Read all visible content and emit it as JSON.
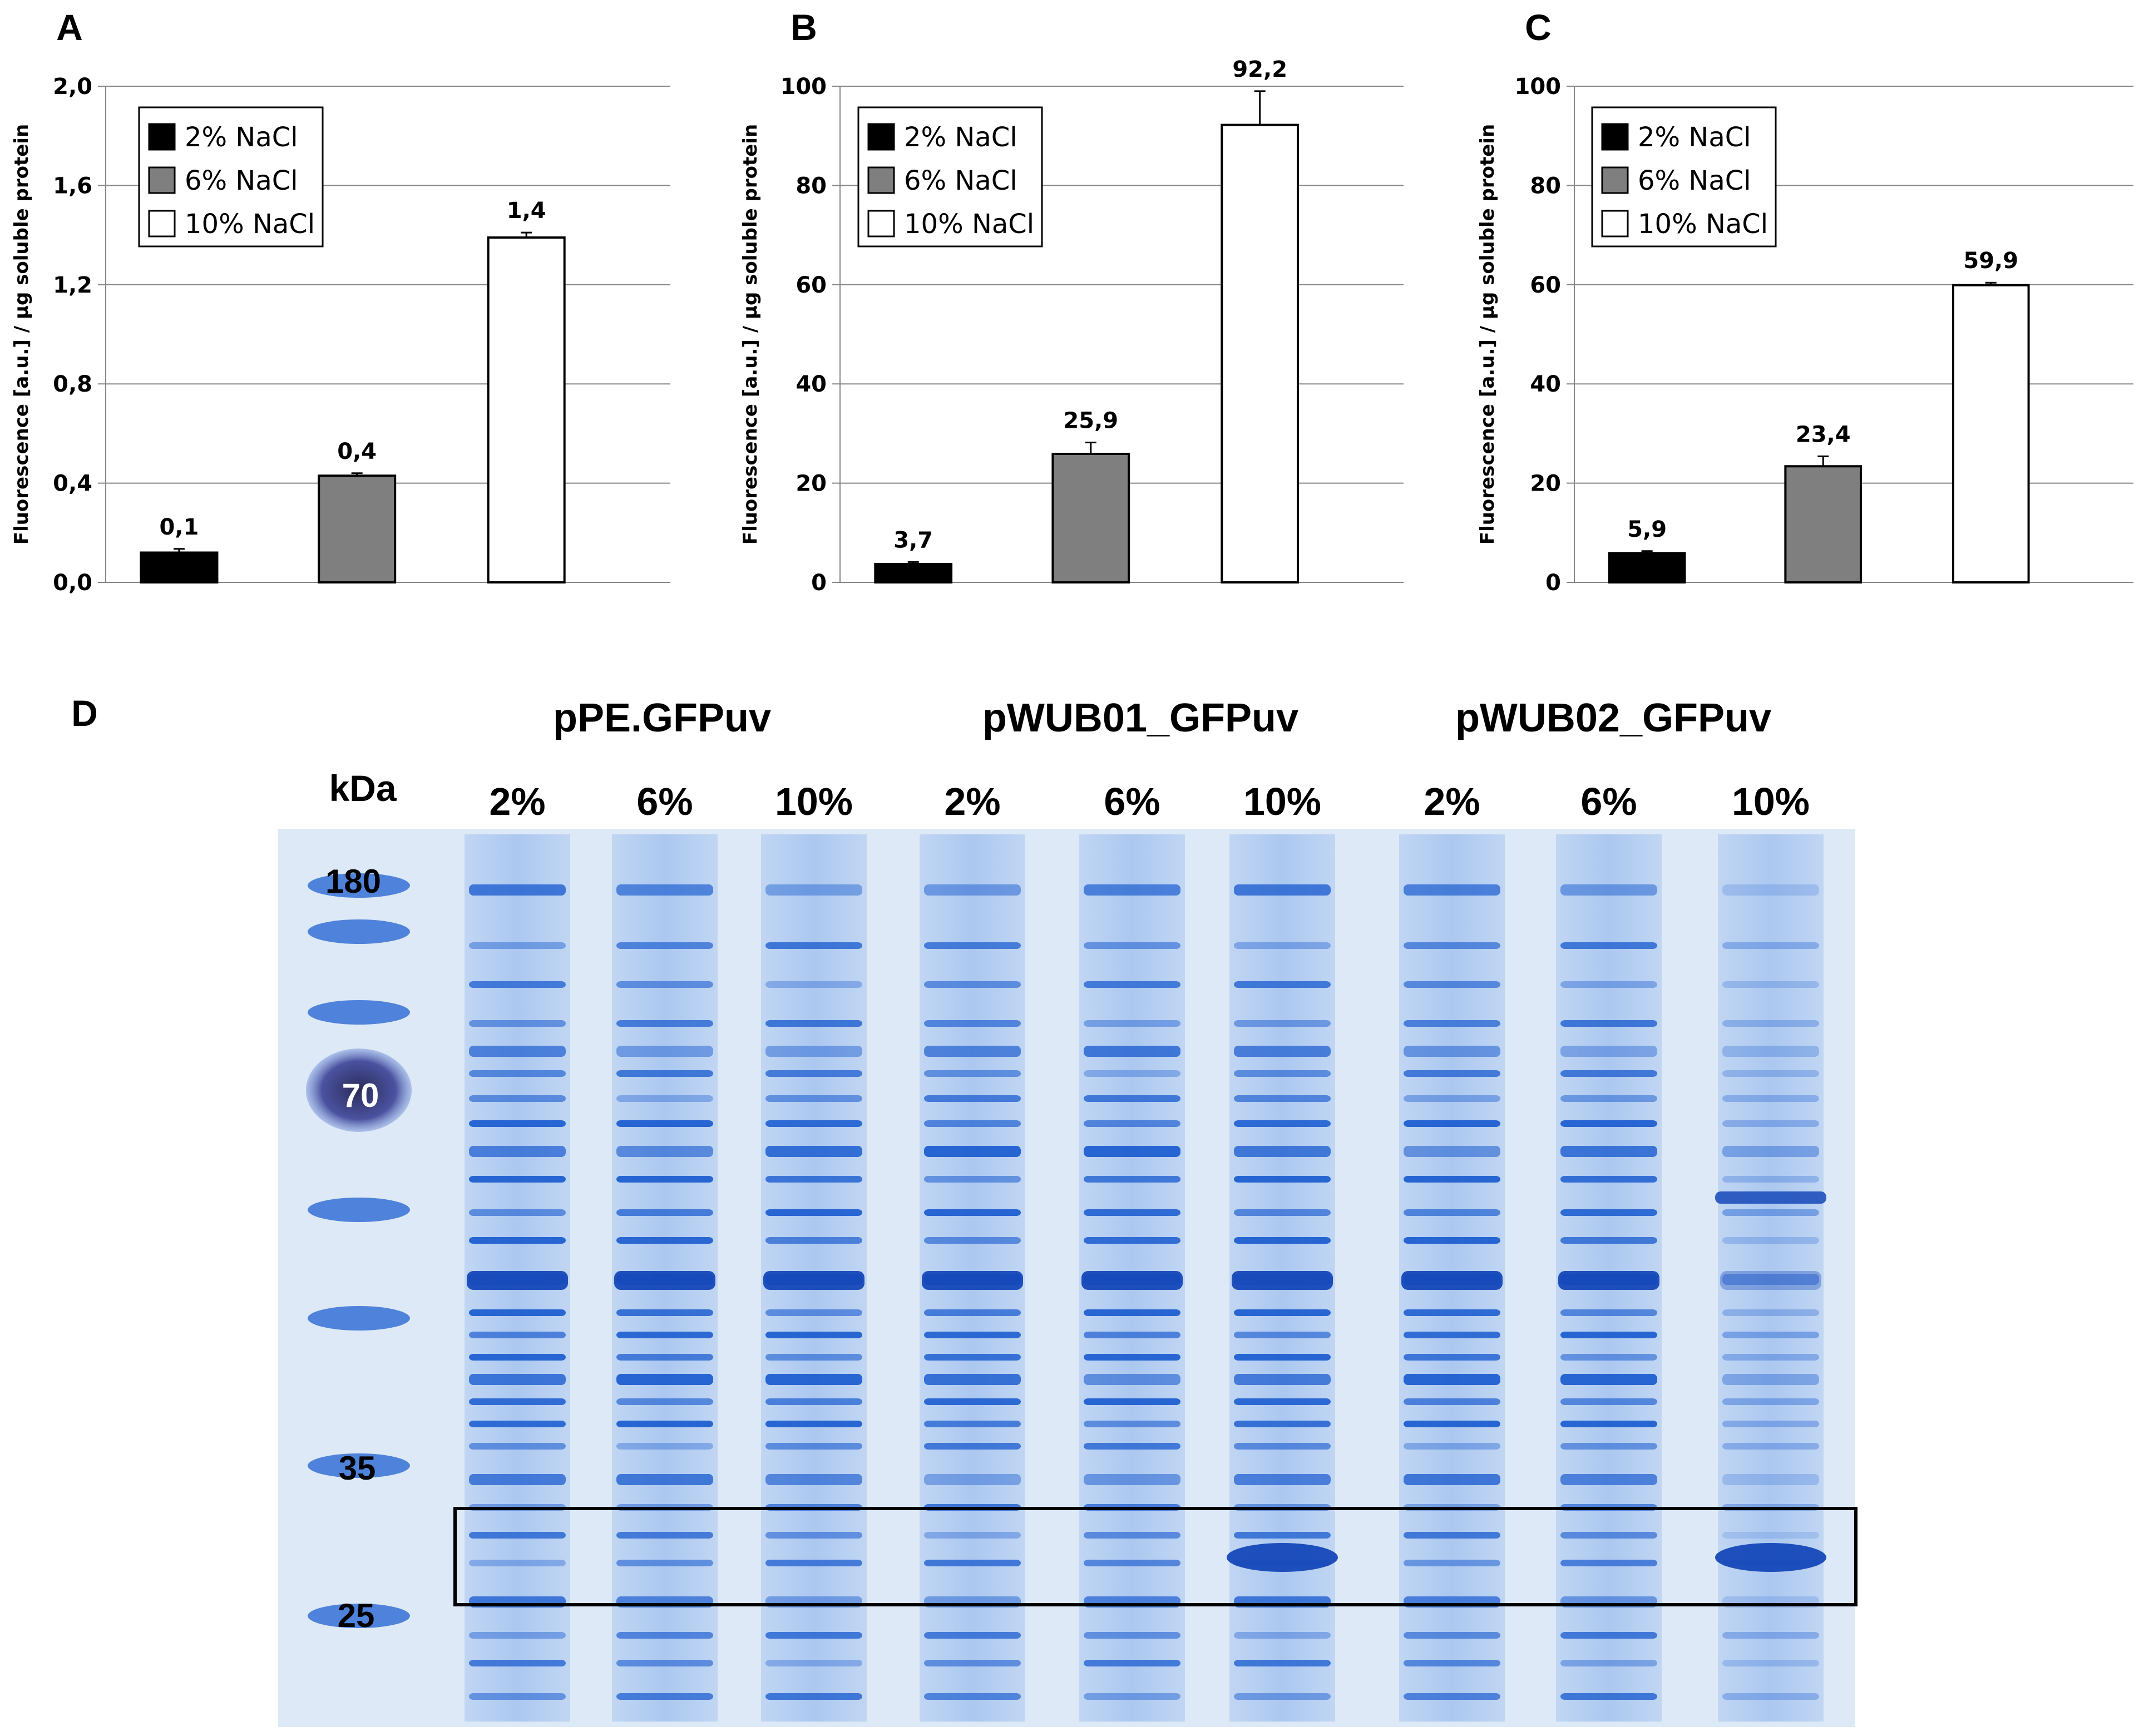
{
  "chart_data": [
    {
      "panel": "A",
      "type": "bar",
      "ylabel": "Fluorescence [a.u.] / µg soluble protein",
      "ylim": [
        0,
        2.0
      ],
      "yticks": [
        "0,0",
        "0,4",
        "0,8",
        "1,2",
        "1,6",
        "2,0"
      ],
      "grid": true,
      "legend_position": "top-left",
      "categories": [
        "2% NaCl",
        "6% NaCl",
        "10% NaCl"
      ],
      "values": [
        0.12,
        0.43,
        1.39
      ],
      "errors": [
        0.015,
        0.01,
        0.02
      ],
      "value_labels": [
        "0,1",
        "0,4",
        "1,4"
      ]
    },
    {
      "panel": "B",
      "type": "bar",
      "ylabel": "Fluorescence [a.u.] / µg soluble protein",
      "ylim": [
        0,
        100
      ],
      "yticks": [
        "0",
        "20",
        "40",
        "60",
        "80",
        "100"
      ],
      "grid": true,
      "legend_position": "top-left",
      "categories": [
        "2% NaCl",
        "6% NaCl",
        "10% NaCl"
      ],
      "values": [
        3.7,
        25.9,
        92.2
      ],
      "errors": [
        0.4,
        2.3,
        6.8
      ],
      "value_labels": [
        "3,7",
        "25,9",
        "92,2"
      ]
    },
    {
      "panel": "C",
      "type": "bar",
      "ylabel": "Fluorescence [a.u.] / µg soluble protein",
      "ylim": [
        0,
        100
      ],
      "yticks": [
        "0",
        "20",
        "40",
        "60",
        "80",
        "100"
      ],
      "grid": true,
      "legend_position": "top-left",
      "categories": [
        "2% NaCl",
        "6% NaCl",
        "10% NaCl"
      ],
      "values": [
        5.9,
        23.4,
        59.9
      ],
      "errors": [
        0.4,
        2.0,
        0.5
      ],
      "value_labels": [
        "5,9",
        "23,4",
        "59,9"
      ]
    }
  ],
  "legend": {
    "entries": [
      "2% NaCl",
      "6% NaCl",
      "10% NaCl"
    ],
    "colors": [
      "#000000",
      "#7f7f7f",
      "#ffffff"
    ]
  },
  "gel": {
    "panel": "D",
    "unit_label": "kDa",
    "constructs": [
      "pPE.GFPuv",
      "pWUB01_GFPuv",
      "pWUB02_GFPuv"
    ],
    "lane_labels": [
      "2%",
      "6%",
      "10%",
      "2%",
      "6%",
      "10%",
      "2%",
      "6%",
      "10%"
    ],
    "marker_labels": [
      "180",
      "70",
      "35",
      "25"
    ],
    "colors": {
      "background": "#dde9f6",
      "band": "#1f5fd0",
      "band_light": "#8fb5ee",
      "marker_dark": "#3a3f7a"
    }
  }
}
